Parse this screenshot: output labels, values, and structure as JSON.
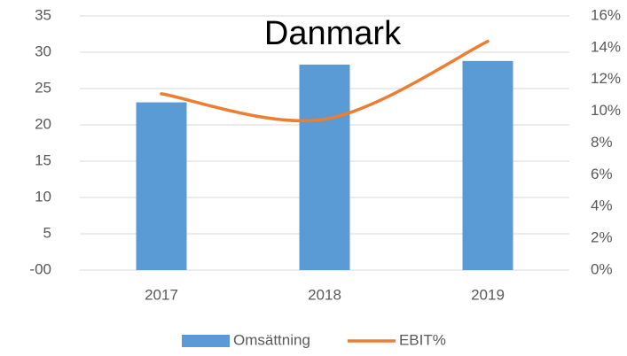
{
  "chart_data": {
    "type": "bar",
    "title": "Danmark",
    "categories": [
      "2017",
      "2018",
      "2019"
    ],
    "series": [
      {
        "name": "Omsättning",
        "type": "bar",
        "color": "#5b9bd5",
        "values": [
          23.1,
          28.3,
          28.8
        ]
      },
      {
        "name": "EBIT%",
        "type": "line",
        "color": "#ed7d31",
        "axis": "y2",
        "smooth": true,
        "values": [
          11.1,
          9.5,
          14.4
        ]
      }
    ],
    "ylim": [
      0,
      35
    ],
    "yticks": [
      {
        "value": 0,
        "label": "-00"
      },
      5,
      10,
      15,
      20,
      25,
      30,
      35
    ],
    "y2lim": [
      0,
      16
    ],
    "y2ticks": [
      {
        "value": 0,
        "label": "0%"
      },
      {
        "value": 2,
        "label": "2%"
      },
      {
        "value": 4,
        "label": "4%"
      },
      {
        "value": 6,
        "label": "6%"
      },
      {
        "value": 8,
        "label": "8%"
      },
      {
        "value": 10,
        "label": "10%"
      },
      {
        "value": 12,
        "label": "12%"
      },
      {
        "value": 14,
        "label": "14%"
      },
      {
        "value": 16,
        "label": "16%"
      }
    ],
    "grid": true,
    "legend": "bottom"
  }
}
